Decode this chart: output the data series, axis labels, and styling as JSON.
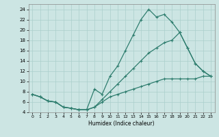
{
  "xlabel": "Humidex (Indice chaleur)",
  "bg_color": "#cce5e3",
  "grid_color": "#aacfcc",
  "line_color": "#2e7d6e",
  "xlim": [
    -0.5,
    23.5
  ],
  "ylim": [
    4,
    25
  ],
  "yticks": [
    4,
    6,
    8,
    10,
    12,
    14,
    16,
    18,
    20,
    22,
    24
  ],
  "xticks": [
    0,
    1,
    2,
    3,
    4,
    5,
    6,
    7,
    8,
    9,
    10,
    11,
    12,
    13,
    14,
    15,
    16,
    17,
    18,
    19,
    20,
    21,
    22,
    23
  ],
  "curve1_x": [
    0,
    1,
    2,
    3,
    4,
    5,
    6,
    7,
    8,
    9,
    10,
    11,
    12,
    13,
    14,
    15,
    16,
    17,
    18,
    19,
    20,
    21,
    22,
    23
  ],
  "curve1_y": [
    7.5,
    7.0,
    6.2,
    6.0,
    5.0,
    4.8,
    4.5,
    4.5,
    8.5,
    7.5,
    11.0,
    13.0,
    16.0,
    19.0,
    22.0,
    24.0,
    22.5,
    23.0,
    21.5,
    19.5,
    16.5,
    13.5,
    12.0,
    11.0
  ],
  "curve2_x": [
    0,
    1,
    2,
    3,
    4,
    5,
    6,
    7,
    8,
    9,
    10,
    11,
    12,
    13,
    14,
    15,
    16,
    17,
    18,
    19,
    20,
    21,
    22,
    23
  ],
  "curve2_y": [
    7.5,
    7.0,
    6.2,
    6.0,
    5.0,
    4.8,
    4.5,
    4.5,
    5.0,
    6.5,
    8.0,
    9.5,
    11.0,
    12.5,
    14.0,
    15.5,
    16.5,
    17.5,
    18.0,
    19.5,
    16.5,
    13.5,
    12.0,
    11.0
  ],
  "curve3_x": [
    0,
    1,
    2,
    3,
    4,
    5,
    6,
    7,
    8,
    9,
    10,
    11,
    12,
    13,
    14,
    15,
    16,
    17,
    18,
    19,
    20,
    21,
    22,
    23
  ],
  "curve3_y": [
    7.5,
    7.0,
    6.2,
    6.0,
    5.0,
    4.8,
    4.5,
    4.5,
    5.0,
    6.0,
    7.0,
    7.5,
    8.0,
    8.5,
    9.0,
    9.5,
    10.0,
    10.5,
    10.5,
    10.5,
    10.5,
    10.5,
    11.0,
    11.0
  ]
}
